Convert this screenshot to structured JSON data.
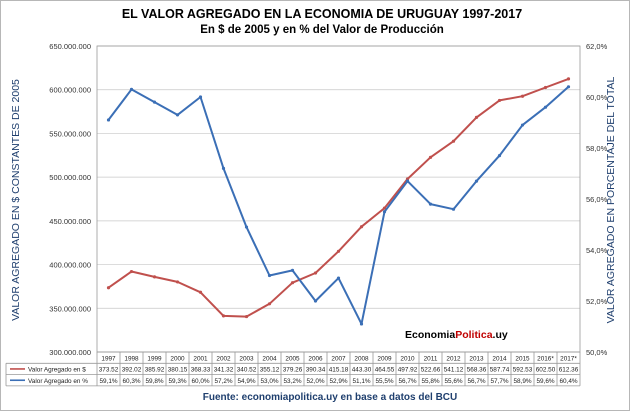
{
  "chart_data": {
    "type": "line",
    "title": "EL VALOR AGREGADO EN LA ECONOMIA DE URUGUAY 1997-2017",
    "subtitle": "En $ de 2005 y en % del Valor de Producción",
    "ylabel_left": "VALOR AGREGADO EN $ CONSTANTES DE 2005",
    "ylabel_right": "VALOR AGREGADO EN PORCENTAJE DEL TOTAL",
    "ylim_left": [
      300000000,
      650000000
    ],
    "ylim_right": [
      50,
      62
    ],
    "yticks_left": [
      "650.000.000",
      "600.000.000",
      "550.000.000",
      "500.000.000",
      "450.000.000",
      "400.000.000",
      "350.000.000",
      "300.000.000"
    ],
    "yticks_right": [
      "62,0%",
      "60,0%",
      "58,0%",
      "56,0%",
      "54,0%",
      "52,0%",
      "50,0%"
    ],
    "grid": true,
    "legend_placement": "table-left",
    "categories": [
      "1997",
      "1998",
      "1999",
      "2000",
      "2001",
      "2002",
      "2003",
      "2004",
      "2005",
      "2006",
      "2007",
      "2008",
      "2009",
      "2010",
      "2011",
      "2012",
      "2013",
      "2014",
      "2015",
      "2016*",
      "2017*"
    ],
    "series": [
      {
        "name": "Valor Agregado en $",
        "axis": "left",
        "color": "#c0504d",
        "values": [
          373.52,
          392.02,
          385.92,
          380.15,
          368.33,
          341.32,
          340.52,
          355.12,
          379.26,
          390.34,
          415.18,
          443.3,
          464.55,
          497.92,
          522.66,
          541.12,
          568.36,
          587.74,
          592.53,
          602.5,
          612.36
        ],
        "labels": [
          "373.52",
          "392.02",
          "385.92",
          "380.15",
          "368.33",
          "341.32",
          "340.52",
          "355.12",
          "379.26",
          "390.34",
          "415.18",
          "443.30",
          "464.55",
          "497.92",
          "522.66",
          "541.12",
          "568.36",
          "587.74",
          "592.53",
          "602.50",
          "612.36"
        ]
      },
      {
        "name": "Valor Agregado en %",
        "axis": "right",
        "color": "#3b6fb6",
        "values": [
          59.1,
          60.3,
          59.8,
          59.3,
          60.0,
          57.2,
          54.9,
          53.0,
          53.2,
          52.0,
          52.9,
          51.1,
          55.5,
          56.7,
          55.8,
          55.6,
          56.7,
          57.7,
          58.9,
          59.6,
          60.4
        ],
        "labels": [
          "59,1%",
          "60,3%",
          "59,8%",
          "59,3%",
          "60,0%",
          "57,2%",
          "54,9%",
          "53,0%",
          "53,2%",
          "52,0%",
          "52,9%",
          "51,1%",
          "55,5%",
          "56,7%",
          "55,8%",
          "55,6%",
          "56,7%",
          "57,7%",
          "58,9%",
          "59,6%",
          "60,4%"
        ]
      }
    ]
  },
  "watermark": {
    "part1": "Economia",
    "part2": "Politica",
    "part3": ".uy"
  },
  "source": "Fuente: economiapolitica.uy en base a datos del BCU"
}
